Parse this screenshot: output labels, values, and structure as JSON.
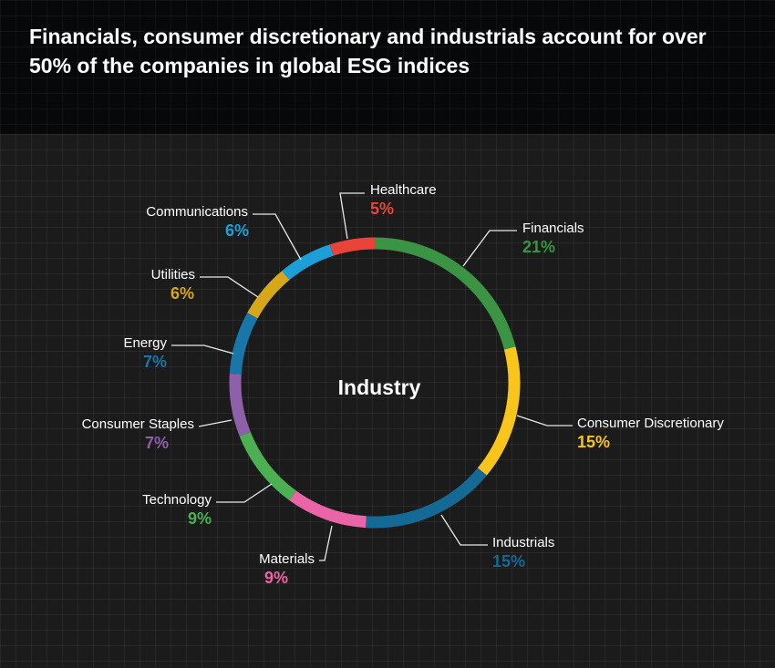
{
  "title": "Financials, consumer discretionary and industrials account for over 50% of the companies in global ESG indices",
  "chart_data": {
    "type": "pie",
    "variant": "donut",
    "center_label": "Industry",
    "unit": "%",
    "slices": [
      {
        "label": "Financials",
        "value": 21,
        "pct_label": "21%",
        "color": "#3a9443"
      },
      {
        "label": "Consumer Discretionary",
        "value": 15,
        "pct_label": "15%",
        "color": "#f7c51b"
      },
      {
        "label": "Industrials",
        "value": 15,
        "pct_label": "15%",
        "color": "#146a94"
      },
      {
        "label": "Materials",
        "value": 9,
        "pct_label": "9%",
        "color": "#e965a7"
      },
      {
        "label": "Technology",
        "value": 9,
        "pct_label": "9%",
        "color": "#4caf52"
      },
      {
        "label": "Consumer Staples",
        "value": 7,
        "pct_label": "7%",
        "color": "#8e60aa"
      },
      {
        "label": "Energy",
        "value": 7,
        "pct_label": "7%",
        "color": "#1877a8"
      },
      {
        "label": "Utilities",
        "value": 6,
        "pct_label": "6%",
        "color": "#d6a71b"
      },
      {
        "label": "Communications",
        "value": 6,
        "pct_label": "6%",
        "color": "#1c9fd8"
      },
      {
        "label": "Healthcare",
        "value": 5,
        "pct_label": "5%",
        "color": "#ea443a"
      }
    ]
  }
}
